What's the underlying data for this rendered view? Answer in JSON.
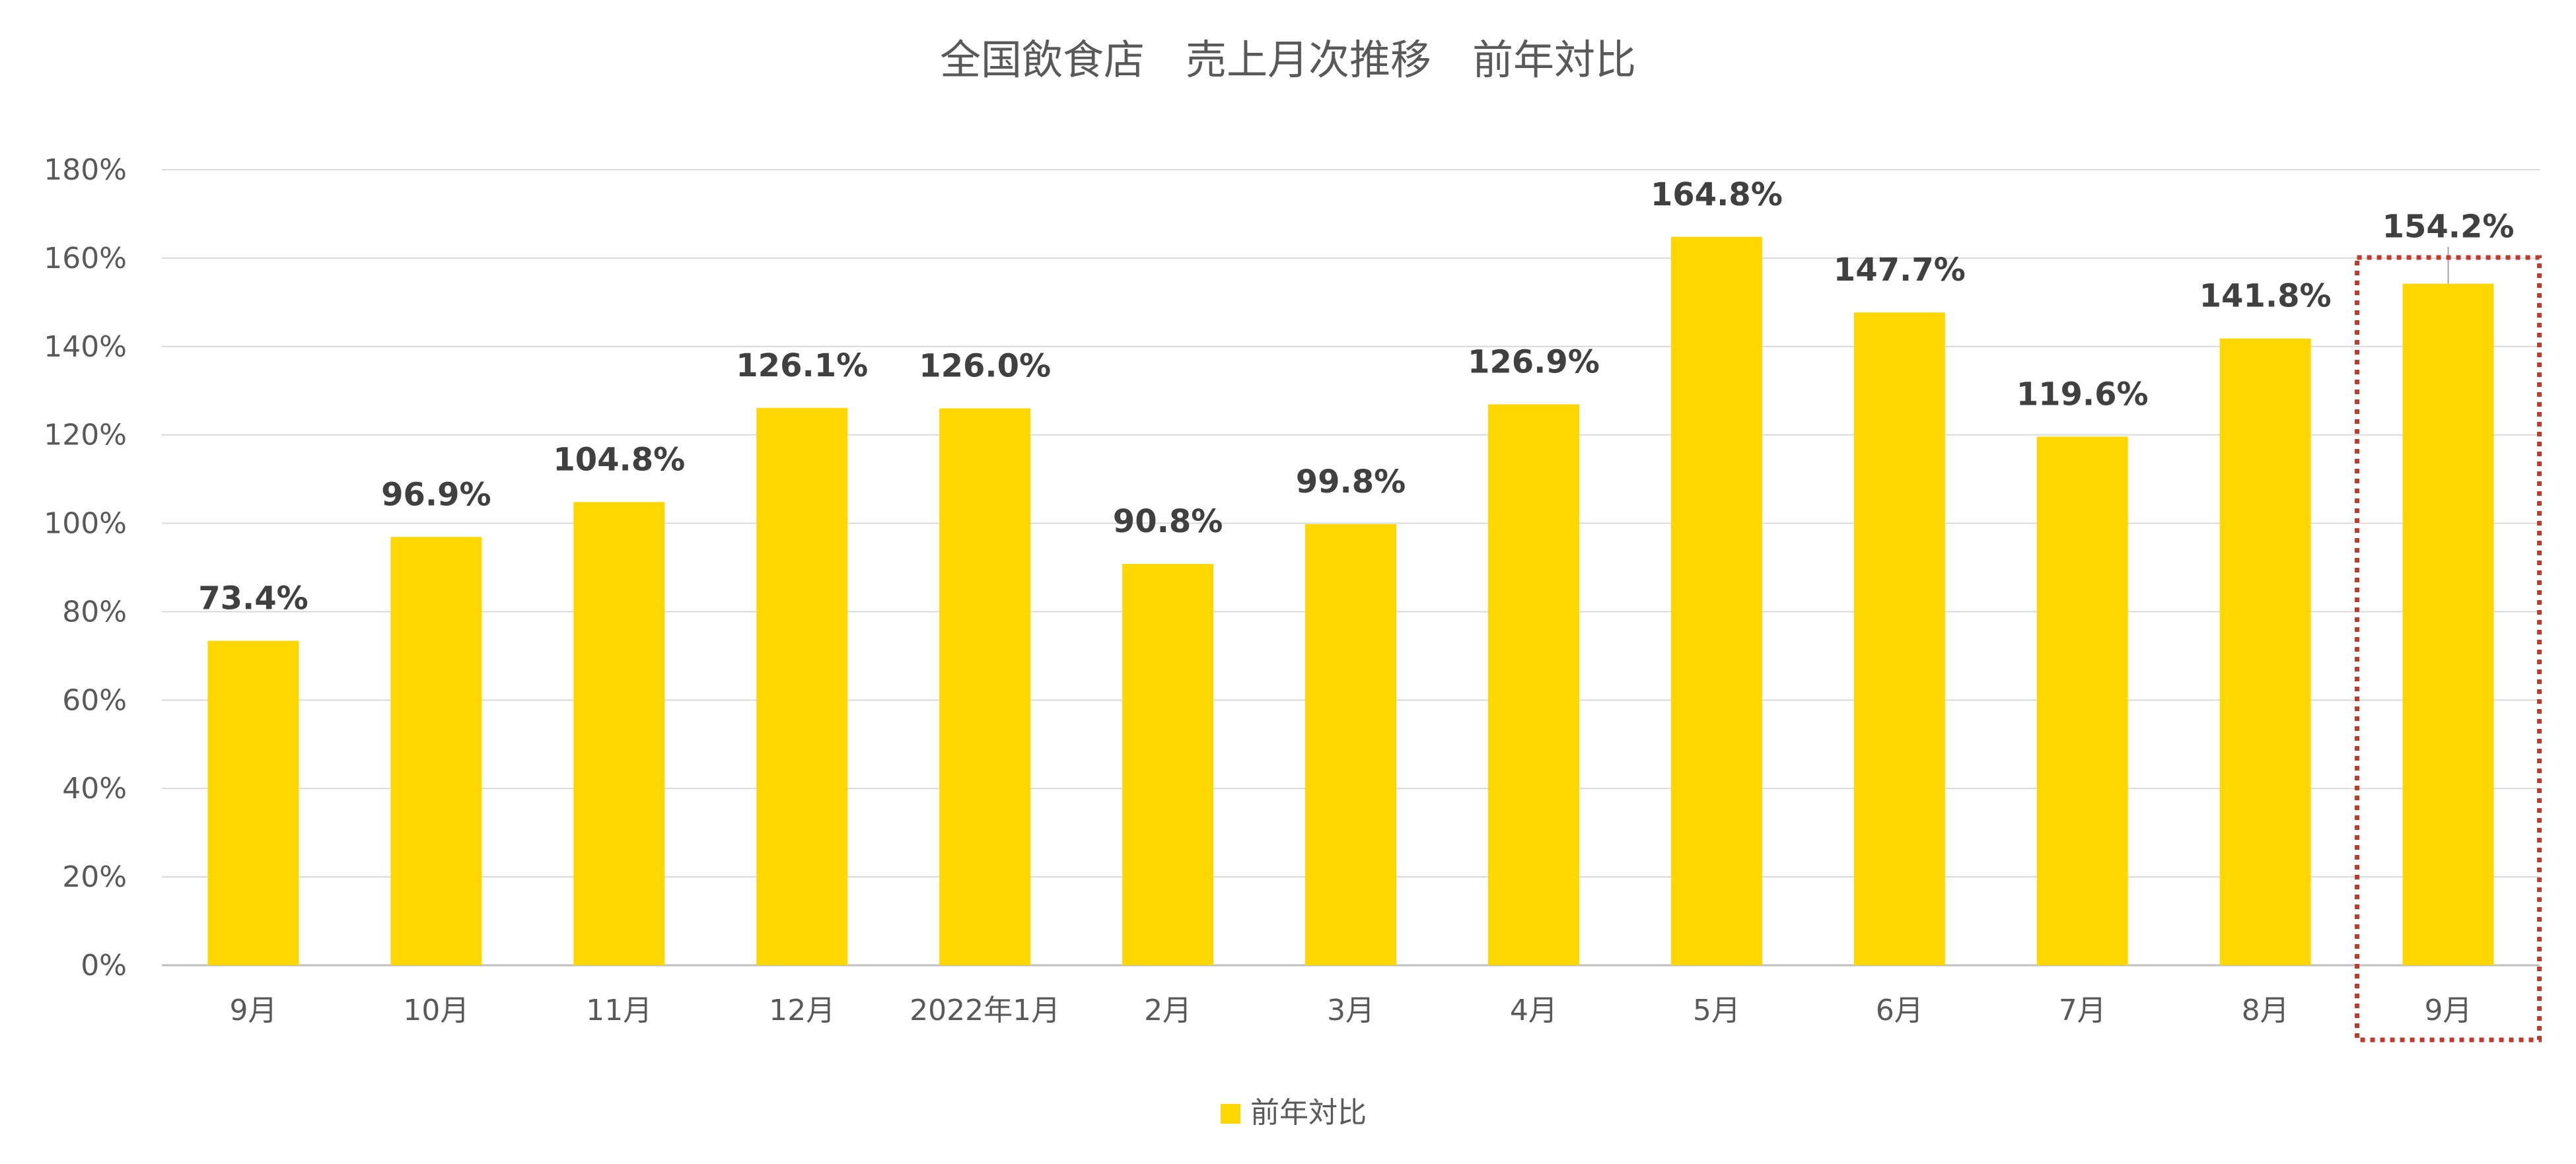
{
  "chart_data": {
    "type": "bar",
    "title": "全国飲食店　売上月次推移　前年対比",
    "categories": [
      "9月",
      "10月",
      "11月",
      "12月",
      "2022年1月",
      "2月",
      "3月",
      "4月",
      "5月",
      "6月",
      "7月",
      "8月",
      "9月"
    ],
    "series": [
      {
        "name": "前年対比",
        "values": [
          73.4,
          96.9,
          104.8,
          126.1,
          126.0,
          90.8,
          99.8,
          126.9,
          164.8,
          147.7,
          119.6,
          141.8,
          154.2
        ],
        "labels": [
          "73.4%",
          "96.9%",
          "104.8%",
          "126.1%",
          "126.0%",
          "90.8%",
          "99.8%",
          "126.9%",
          "164.8%",
          "147.7%",
          "119.6%",
          "141.8%",
          "154.2%"
        ],
        "color": "#FFD700"
      }
    ],
    "ylim": [
      0,
      180
    ],
    "yticks": [
      "0%",
      "20%",
      "40%",
      "60%",
      "80%",
      "100%",
      "120%",
      "140%",
      "160%",
      "180%"
    ],
    "xlabel": "",
    "ylabel": "",
    "grid": true,
    "legend_position": "bottom",
    "highlight": {
      "category_index": 12,
      "style": "dotted",
      "color": "#C0392B"
    }
  }
}
